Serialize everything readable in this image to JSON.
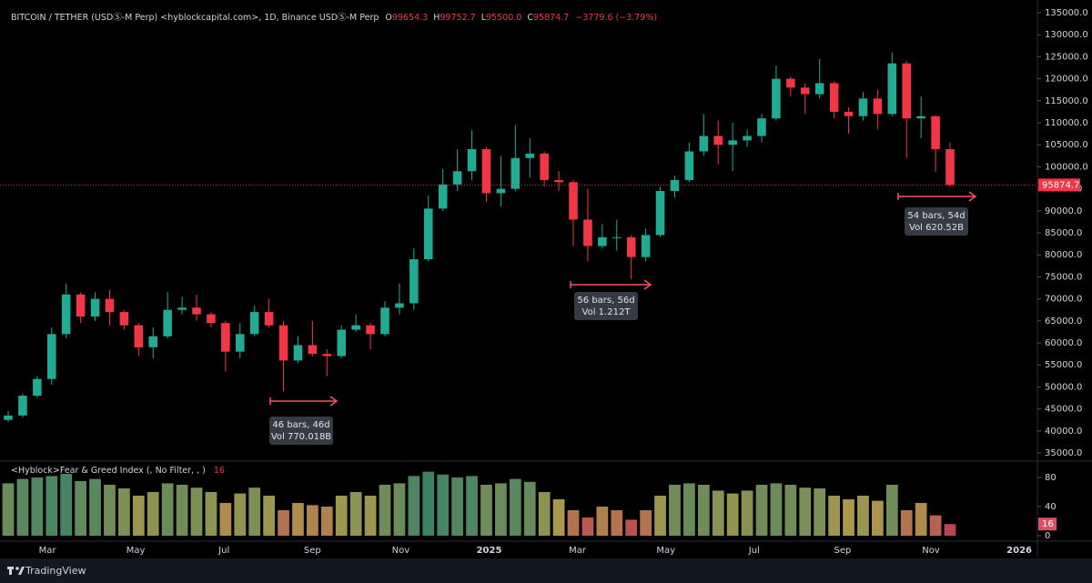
{
  "header": {
    "symbol": "BITCOIN / TETHER (USDⓈ-M Perp) <hyblockcapital.com>, 1D, Binance USDⓈ-M Perp",
    "ohlc": [
      {
        "label": "O",
        "value": "99654.3"
      },
      {
        "label": "H",
        "value": "99752.7"
      },
      {
        "label": "L",
        "value": "95500.0"
      },
      {
        "label": "C",
        "value": "95874.7"
      }
    ],
    "change": "−3779.6 (−3.79%)"
  },
  "footer": {
    "brand": "TradingView"
  },
  "chart_data": [
    {
      "type": "candlestick",
      "up_color": "#22ab94",
      "down_color": "#f23645",
      "price_line_color": "#f23645",
      "open": [
        42500,
        43500,
        48000,
        51800,
        62000,
        71000,
        66000,
        70000,
        67000,
        64000,
        59000,
        61500,
        67500,
        68000,
        66500,
        64500,
        58000,
        62000,
        67000,
        64000,
        56000,
        59500,
        57500,
        57000,
        63000,
        64000,
        62000,
        68000,
        69000,
        79000,
        90500,
        96000,
        99000,
        104000,
        94000,
        95000,
        102000,
        103000,
        97000,
        96500,
        88000,
        82000,
        84000,
        84000,
        79500,
        84500,
        94500,
        97000,
        103500,
        107000,
        105000,
        106000,
        107000,
        111000,
        120000,
        118000,
        116500,
        119000,
        112500,
        111500,
        115500,
        112000,
        123500,
        111000,
        111500,
        104000
      ],
      "high": [
        44500,
        48500,
        52500,
        63500,
        73500,
        71500,
        71500,
        72000,
        67500,
        64500,
        63500,
        71500,
        70500,
        71000,
        67000,
        65000,
        64500,
        68500,
        70000,
        65000,
        61500,
        65000,
        58500,
        64000,
        66500,
        64500,
        69500,
        73500,
        81500,
        93500,
        99500,
        104000,
        108300,
        104500,
        102500,
        109500,
        106500,
        103500,
        99000,
        97000,
        95000,
        87000,
        88000,
        84500,
        86000,
        95500,
        98000,
        105500,
        112000,
        110500,
        110000,
        108500,
        112000,
        123000,
        120500,
        119000,
        124500,
        119500,
        113500,
        117000,
        117500,
        126000,
        124000,
        116000,
        111700,
        105500
      ],
      "low": [
        42000,
        43000,
        47500,
        50500,
        61000,
        64500,
        65000,
        64000,
        63000,
        57000,
        56500,
        61000,
        66500,
        65000,
        63500,
        53500,
        56500,
        61500,
        63500,
        49000,
        55500,
        57000,
        52500,
        56500,
        62500,
        58500,
        61500,
        66500,
        67500,
        78500,
        90000,
        94500,
        97000,
        92000,
        91000,
        94500,
        97500,
        95500,
        94500,
        82000,
        78500,
        81500,
        81000,
        74500,
        78500,
        84000,
        93000,
        96500,
        102500,
        100500,
        99000,
        104500,
        105500,
        110500,
        116000,
        112000,
        115500,
        111000,
        107500,
        110500,
        108500,
        111500,
        102000,
        106500,
        98900,
        95500
      ],
      "close": [
        43500,
        48000,
        51800,
        62000,
        71000,
        66000,
        70000,
        67000,
        64000,
        59000,
        61500,
        67500,
        68000,
        66500,
        64500,
        58000,
        62000,
        67000,
        64000,
        56000,
        59500,
        57500,
        57000,
        63000,
        64000,
        62000,
        68000,
        69000,
        79000,
        90500,
        96000,
        99000,
        104000,
        94000,
        95000,
        102000,
        103000,
        97000,
        96500,
        88000,
        82000,
        84000,
        84000,
        79500,
        84500,
        94500,
        97000,
        103500,
        107000,
        105000,
        106000,
        107000,
        111000,
        120000,
        118000,
        116500,
        119000,
        112500,
        111500,
        115500,
        112000,
        123500,
        111000,
        111500,
        104000,
        95874.7
      ],
      "ylim": [
        35000,
        135000
      ],
      "yticks": [
        {
          "value": 135000,
          "label": "135000.0"
        },
        {
          "value": 130000,
          "label": "130000.0"
        },
        {
          "value": 125000,
          "label": "125000.0"
        },
        {
          "value": 120000,
          "label": "120000.0"
        },
        {
          "value": 115000,
          "label": "115000.0"
        },
        {
          "value": 110000,
          "label": "110000.0"
        },
        {
          "value": 105000,
          "label": "105000.0"
        },
        {
          "value": 100000,
          "label": "100000.0"
        },
        {
          "value": 95000,
          "label": "95000.0"
        },
        {
          "value": 90000,
          "label": "90000.0"
        },
        {
          "value": 85000,
          "label": "85000.0"
        },
        {
          "value": 80000,
          "label": "80000.0"
        },
        {
          "value": 75000,
          "label": "75000.0"
        },
        {
          "value": 70000,
          "label": "70000.0"
        },
        {
          "value": 65000,
          "label": "65000.0"
        },
        {
          "value": 60000,
          "label": "60000.0"
        },
        {
          "value": 55000,
          "label": "55000.0"
        },
        {
          "value": 50000,
          "label": "50000.0"
        },
        {
          "value": 45000,
          "label": "45000.0"
        },
        {
          "value": 40000,
          "label": "40000.0"
        },
        {
          "value": 35000,
          "label": "35000.0"
        }
      ],
      "xtick_labels": [
        "Mar",
        "May",
        "Jul",
        "Sep",
        "Nov",
        "2025",
        "Mar",
        "May",
        "Jul",
        "Sep",
        "Nov",
        "2026"
      ],
      "annotations": [
        {
          "bars": "46 bars, 46d",
          "vol": "Vol 770.018B"
        },
        {
          "bars": "56 bars, 56d",
          "vol": "Vol 1.212T"
        },
        {
          "bars": "54 bars, 54d",
          "vol": "Vol 620.52B"
        }
      ],
      "grid": false
    },
    {
      "type": "bar",
      "title": "<Hyblock>Fear & Greed Index (, No Filter, , )",
      "values": [
        72,
        78,
        80,
        82,
        85,
        75,
        78,
        70,
        65,
        55,
        60,
        72,
        70,
        66,
        60,
        45,
        58,
        66,
        55,
        35,
        45,
        42,
        40,
        55,
        60,
        55,
        70,
        72,
        82,
        88,
        84,
        80,
        82,
        70,
        72,
        78,
        74,
        60,
        50,
        35,
        25,
        40,
        35,
        22,
        35,
        55,
        70,
        72,
        70,
        62,
        58,
        62,
        70,
        72,
        70,
        66,
        65,
        55,
        50,
        55,
        48,
        70,
        35,
        45,
        28,
        16
      ],
      "colors": {
        "low": "#e91e63",
        "mid": "#c8b45a",
        "high": "#1e9080"
      },
      "y2lim": [
        0,
        100
      ],
      "y2ticks": [
        0,
        40,
        80
      ]
    }
  ]
}
